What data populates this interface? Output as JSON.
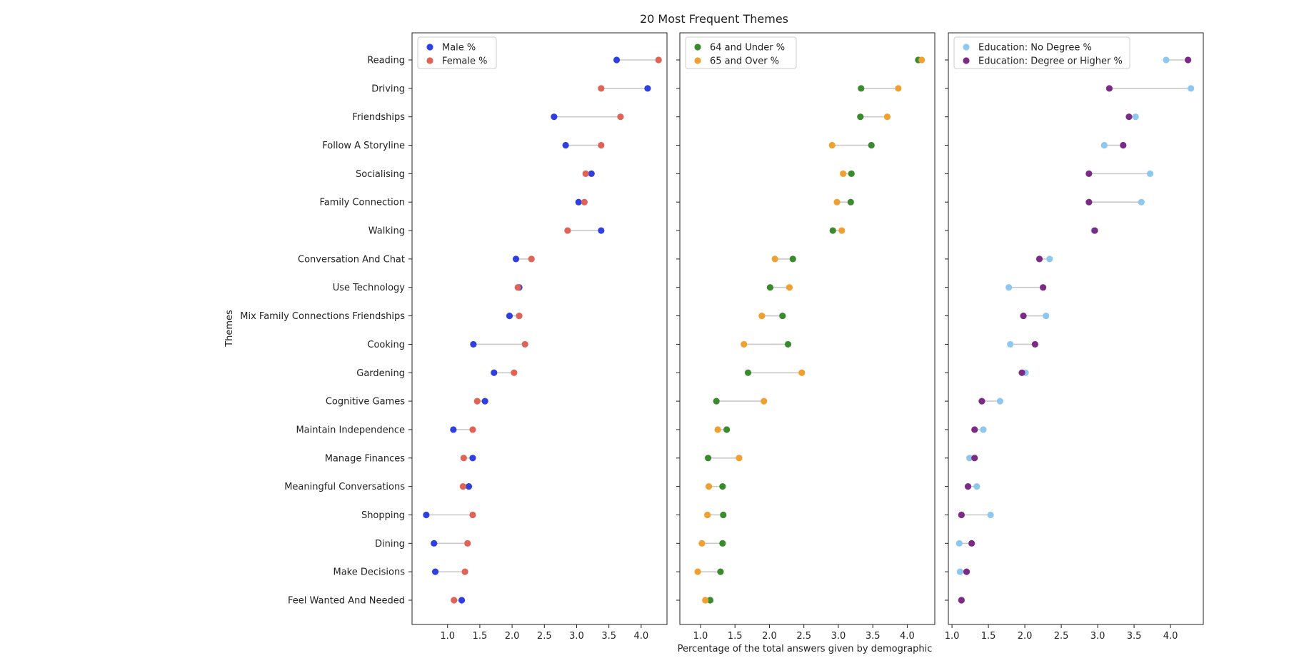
{
  "chart_data": {
    "type": "scatter",
    "title": "20 Most Frequent Themes",
    "ylabel": "Themes",
    "xlabel": "Percentage of the total answers given by demographic",
    "themes": [
      "Reading",
      "Driving",
      "Friendships",
      "Follow A Storyline",
      "Socialising",
      "Family Connection",
      "Walking",
      "Conversation And Chat",
      "Use Technology",
      "Mix Family Connections Friendships",
      "Cooking",
      "Gardening",
      "Cognitive Games",
      "Maintain Independence",
      "Manage Finances",
      "Meaningful Conversations",
      "Shopping",
      "Dining",
      "Make Decisions",
      "Feel Wanted And Needed"
    ],
    "panels": [
      {
        "xlim": [
          0.45,
          4.4
        ],
        "ticks": [
          1.0,
          1.5,
          2.0,
          2.5,
          3.0,
          3.5,
          4.0
        ],
        "tick_labels": [
          "1.0",
          "1.5",
          "2.0",
          "2.5",
          "3.0",
          "3.5",
          "4.0"
        ],
        "legend_position": "top-left",
        "series": [
          {
            "name": "Male %",
            "color": "#2f3fe0",
            "values": [
              3.62,
              4.1,
              2.65,
              2.83,
              3.23,
              3.03,
              3.38,
              2.06,
              2.11,
              1.96,
              1.4,
              1.72,
              1.58,
              1.09,
              1.39,
              1.33,
              0.67,
              0.79,
              0.81,
              1.22
            ]
          },
          {
            "name": "Female %",
            "color": "#e06358",
            "values": [
              4.27,
              3.38,
              3.68,
              3.38,
              3.14,
              3.12,
              2.86,
              2.3,
              2.09,
              2.11,
              2.2,
              2.03,
              1.46,
              1.39,
              1.25,
              1.24,
              1.39,
              1.31,
              1.27,
              1.1
            ]
          }
        ]
      },
      {
        "xlim": [
          0.7,
          4.4
        ],
        "ticks": [
          1.0,
          1.5,
          2.0,
          2.5,
          3.0,
          3.5,
          4.0
        ],
        "tick_labels": [
          "1.0",
          "1.5",
          "2.0",
          "2.5",
          "3.0",
          "3.5",
          "4.0"
        ],
        "legend_position": "top-left",
        "series": [
          {
            "name": "64 and Under %",
            "color": "#3a8a2e",
            "values": [
              4.16,
              3.33,
              3.32,
              3.48,
              3.19,
              3.18,
              2.92,
              2.34,
              2.01,
              2.19,
              2.27,
              1.69,
              1.23,
              1.38,
              1.11,
              1.32,
              1.33,
              1.32,
              1.29,
              1.14
            ]
          },
          {
            "name": "65 and Over %",
            "color": "#f0a030",
            "values": [
              4.21,
              3.87,
              3.71,
              2.91,
              3.07,
              2.98,
              3.05,
              2.08,
              2.29,
              1.89,
              1.63,
              2.47,
              1.92,
              1.25,
              1.56,
              1.12,
              1.1,
              1.02,
              0.96,
              1.07
            ]
          }
        ]
      },
      {
        "xlim": [
          0.95,
          4.45
        ],
        "ticks": [
          1.0,
          1.5,
          2.0,
          2.5,
          3.0,
          3.5,
          4.0
        ],
        "tick_labels": [
          "1.0",
          "1.5",
          "2.0",
          "2.5",
          "3.0",
          "3.5",
          "4.0"
        ],
        "legend_position": "top-left",
        "series": [
          {
            "name": "Education: No Degree %",
            "color": "#8ec8ee",
            "values": [
              3.94,
              4.28,
              3.52,
              3.09,
              3.72,
              3.6,
              2.95,
              2.34,
              1.78,
              2.29,
              1.8,
              2.01,
              1.66,
              1.43,
              1.24,
              1.34,
              1.53,
              1.1,
              1.11,
              1.13
            ]
          },
          {
            "name": "Education: Degree or Higher %",
            "color": "#7b2a85",
            "values": [
              4.24,
              3.16,
              3.43,
              3.35,
              2.88,
              2.88,
              2.96,
              2.2,
              2.25,
              1.98,
              2.14,
              1.96,
              1.41,
              1.31,
              1.31,
              1.22,
              1.13,
              1.27,
              1.2,
              1.13
            ]
          }
        ]
      }
    ]
  }
}
